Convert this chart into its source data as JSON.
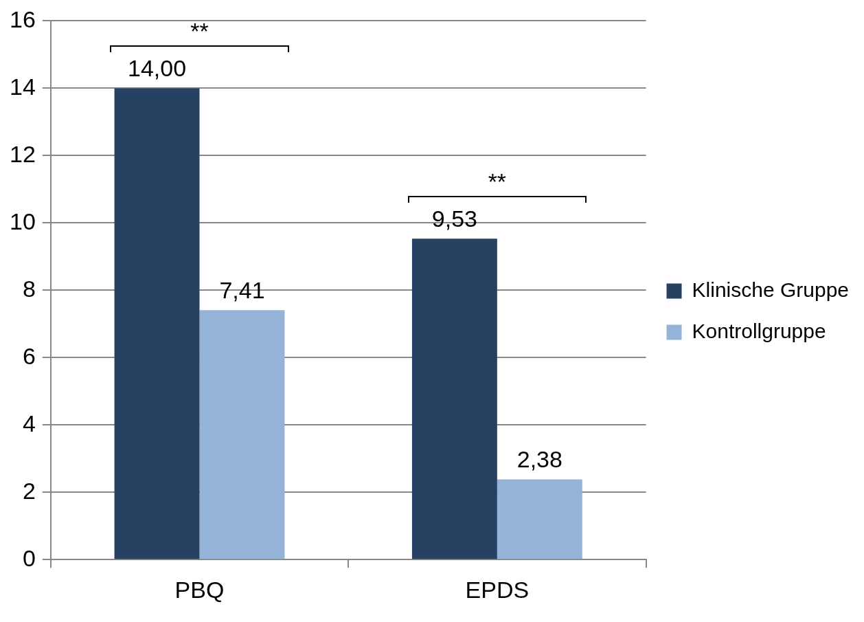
{
  "chart_data": {
    "type": "bar",
    "categories": [
      "PBQ",
      "EPDS"
    ],
    "series": [
      {
        "name": "Klinische Gruppe",
        "color": "#264161",
        "values": [
          14.0,
          9.53
        ],
        "value_labels": [
          "14,00",
          "9,53"
        ]
      },
      {
        "name": "Kontrollgruppe",
        "color": "#95b3d7",
        "values": [
          7.41,
          2.38
        ],
        "value_labels": [
          "7,41",
          "2,38"
        ]
      }
    ],
    "ylim": [
      0,
      16
    ],
    "yticks": [
      0,
      2,
      4,
      6,
      8,
      10,
      12,
      14,
      16
    ],
    "grid": "y",
    "legend": "right",
    "annotations": [
      "**",
      "**"
    ]
  }
}
